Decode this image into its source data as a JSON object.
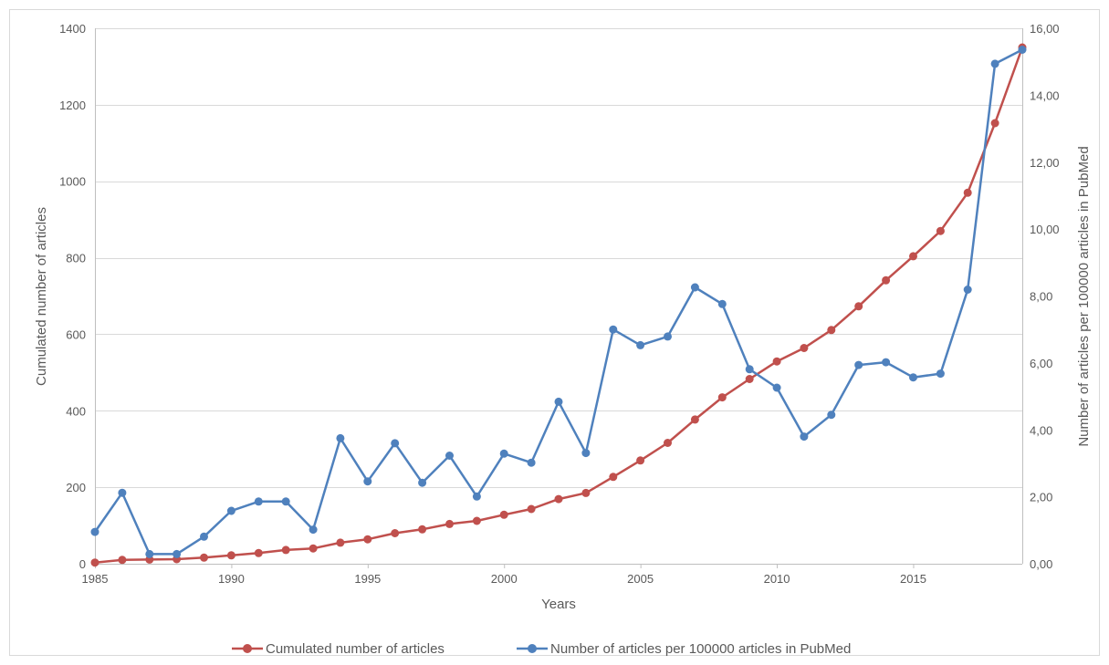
{
  "chart_data": {
    "type": "line",
    "xlabel": "Years",
    "ylabel": "Cumulated number of articles",
    "y2label": "Number of articles per 100000 articles in PubMed",
    "xlim": [
      1985,
      2019
    ],
    "ylim": [
      0,
      1400
    ],
    "y2lim": [
      0,
      16
    ],
    "x_ticks": [
      "1985",
      "1990",
      "1995",
      "2000",
      "2005",
      "2010",
      "2015"
    ],
    "y_ticks": [
      "0",
      "200",
      "400",
      "600",
      "800",
      "1000",
      "1200",
      "1400"
    ],
    "y2_ticks": [
      "0,00",
      "2,00",
      "4,00",
      "6,00",
      "8,00",
      "10,00",
      "12,00",
      "14,00",
      "16,00"
    ],
    "grid": "horizontal",
    "legend_position": "bottom",
    "x": [
      1985,
      1986,
      1987,
      1988,
      1989,
      1990,
      1991,
      1992,
      1993,
      1994,
      1995,
      1996,
      1997,
      1998,
      1999,
      2000,
      2001,
      2002,
      2003,
      2004,
      2005,
      2006,
      2007,
      2008,
      2009,
      2010,
      2011,
      2012,
      2013,
      2014,
      2015,
      2016,
      2017,
      2018,
      2019
    ],
    "series": [
      {
        "name": "Cumulated number of articles",
        "axis": "left",
        "color": "#C0504D",
        "values": [
          3,
          10,
          11,
          12,
          16,
          22,
          28,
          36,
          40,
          55,
          64,
          80,
          90,
          104,
          112,
          128,
          143,
          169,
          185,
          227,
          270,
          316,
          377,
          435,
          483,
          529,
          564,
          611,
          673,
          741,
          804,
          870,
          970,
          1152,
          1350
        ]
      },
      {
        "name": "Number of articles per 100000 articles in PubMed",
        "axis": "right",
        "color": "#4F81BD",
        "values": [
          0.95,
          2.12,
          0.29,
          0.29,
          0.81,
          1.58,
          1.86,
          1.86,
          1.02,
          3.75,
          2.46,
          3.6,
          2.42,
          3.23,
          2.01,
          3.29,
          3.02,
          4.84,
          3.31,
          7.0,
          6.53,
          6.79,
          8.26,
          7.76,
          5.81,
          5.26,
          3.8,
          4.45,
          5.94,
          6.02,
          5.57,
          5.68,
          8.19,
          14.94,
          15.36
        ]
      }
    ]
  }
}
